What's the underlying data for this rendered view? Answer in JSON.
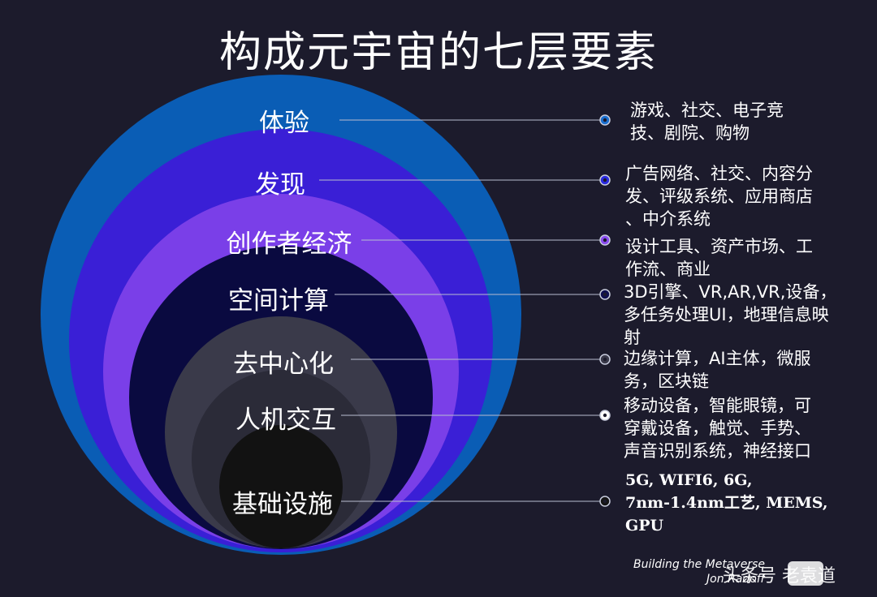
{
  "title": "构成元宇宙的七层要素",
  "colors": {
    "background": "#1c1b2c",
    "layer1": "#0a5db5",
    "layer2": "#3a1fd6",
    "layer3": "#7a3fe8",
    "layer4": "#0a0a40",
    "layer5": "#3a3a4a",
    "layer6": "#2b2b38",
    "layer7": "#121212"
  },
  "layers": [
    {
      "name": "体验",
      "description": [
        "游戏、社交、电子竞",
        "技、剧院、购物"
      ]
    },
    {
      "name": "发现",
      "description": [
        "广告网络、社交、内容分",
        "发、评级系统、应用商店",
        "、中介系统"
      ]
    },
    {
      "name": "创作者经济",
      "description": [
        "设计工具、资产市场、工",
        "作流、商业"
      ]
    },
    {
      "name": "空间计算",
      "description": [
        "3D引擎、VR,AR,VR,设备，",
        "多任务处理UI，地理信息映",
        "射"
      ]
    },
    {
      "name": "去中心化",
      "description": [
        "边缘计算，AI主体，微服",
        "务，区块链"
      ]
    },
    {
      "name": "人机交互",
      "description": [
        "移动设备，智能眼镜，可",
        "穿戴设备，触觉、手势、",
        "声音识别系统，神经接口"
      ]
    },
    {
      "name": "基础设施",
      "description": [
        "5G, WIFI6, 6G,",
        "7nm-1.4nm工艺, MEMS,",
        "GPU"
      ]
    }
  ],
  "footer": {
    "line1": "Building the Metaverse",
    "line2": "Jon Radoff"
  },
  "watermark": "头条号 老袁道"
}
